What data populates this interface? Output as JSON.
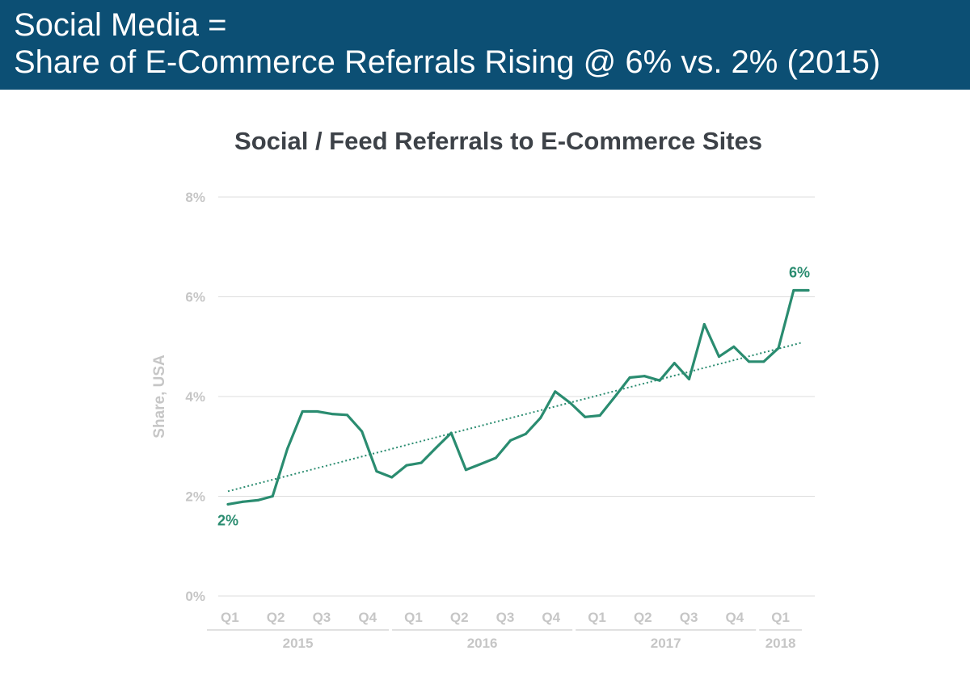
{
  "header": {
    "line1": "Social Media =",
    "line2": "Share of E-Commerce Referrals Rising @ 6% vs. 2% (2015)"
  },
  "colors": {
    "header_bg": "#0c4f74",
    "series": "#2a8c70",
    "gridline": "#dddddd",
    "axis_text": "#c6c6c6"
  },
  "chart_data": {
    "type": "line",
    "title": "Social / Feed Referrals to E-Commerce Sites",
    "xlabel": "",
    "ylabel": "Share, USA",
    "ylim": [
      0,
      8
    ],
    "yticks": [
      0,
      2,
      4,
      6,
      8
    ],
    "ytick_labels": [
      "0%",
      "2%",
      "4%",
      "6%",
      "8%"
    ],
    "grid": true,
    "quarter_labels": [
      "Q1",
      "Q2",
      "Q3",
      "Q4",
      "Q1",
      "Q2",
      "Q3",
      "Q4",
      "Q1",
      "Q2",
      "Q3",
      "Q4",
      "Q1"
    ],
    "year_groups": [
      {
        "label": "2015",
        "quarters": 4
      },
      {
        "label": "2016",
        "quarters": 4
      },
      {
        "label": "2017",
        "quarters": 4
      },
      {
        "label": "2018",
        "quarters": 1
      }
    ],
    "x_start_quarter": 0.0,
    "x_end_quarter": 13.0,
    "series": [
      {
        "name": "Social / Feed Referrals",
        "x": [
          0.0,
          0.33,
          0.67,
          1.0,
          1.33,
          1.67,
          2.0,
          2.33,
          2.67,
          3.0,
          3.33,
          3.67,
          4.0,
          4.33,
          4.67,
          5.0,
          5.33,
          5.67,
          6.0,
          6.33,
          6.67,
          7.0,
          7.33,
          7.67,
          8.0,
          8.33,
          8.67,
          9.0,
          9.33,
          9.67,
          10.0,
          10.33,
          10.67,
          11.0,
          11.33,
          11.67,
          12.0,
          12.33,
          12.67,
          13.0
        ],
        "values": [
          1.84,
          1.89,
          1.92,
          2.0,
          2.95,
          3.7,
          3.7,
          3.65,
          3.63,
          3.3,
          2.5,
          2.38,
          2.62,
          2.67,
          2.98,
          3.27,
          2.53,
          2.65,
          2.77,
          3.12,
          3.25,
          3.57,
          4.1,
          3.87,
          3.59,
          3.62,
          4.0,
          4.38,
          4.41,
          4.32,
          4.67,
          4.35,
          5.45,
          4.8,
          5.0,
          4.7,
          4.7,
          4.97,
          6.13,
          6.13
        ]
      },
      {
        "name": "Trend",
        "style": "dotted",
        "x": [
          0.0,
          12.85
        ],
        "values": [
          2.1,
          5.08
        ]
      }
    ],
    "annotations": [
      {
        "text": "2%",
        "x": 0.0,
        "y": 1.84,
        "position": "below"
      },
      {
        "text": "6%",
        "x": 12.8,
        "y": 6.13,
        "position": "above"
      }
    ]
  }
}
